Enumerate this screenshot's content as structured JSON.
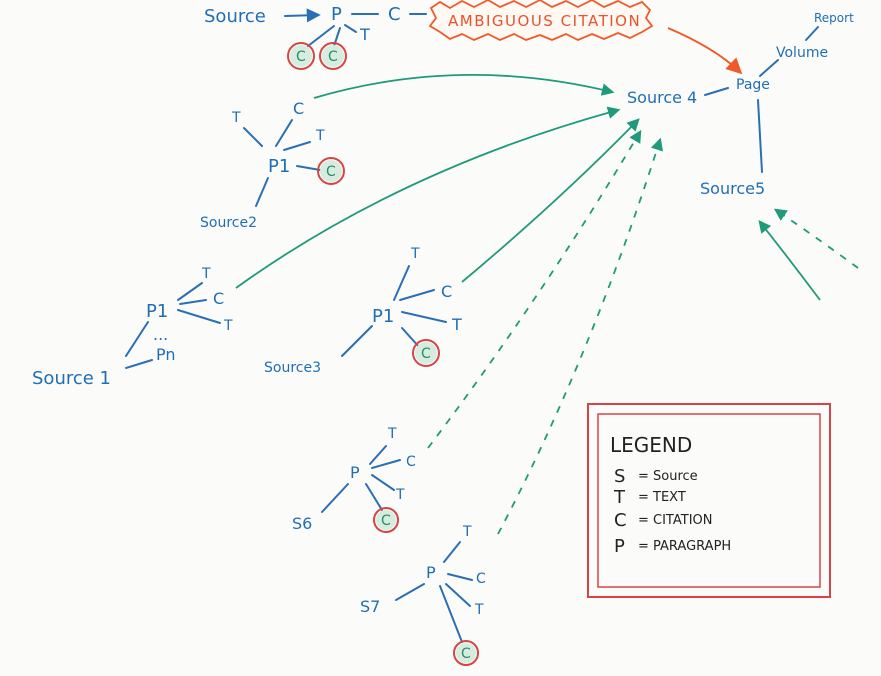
{
  "colors": {
    "node": "#2a6fb3",
    "arrow": "#1f9a7a",
    "ambiguous": "#ee5a2a",
    "legend_border": "#d64545"
  },
  "top": {
    "source": "Source",
    "p": "P",
    "c": "C",
    "t": "T",
    "cit1": "C",
    "cit2": "C",
    "ambiguous": "AMBIGUOUS CITATION"
  },
  "right": {
    "source4": "Source 4",
    "page": "Page",
    "volume": "Volume",
    "report": "Report",
    "source5": "Source5"
  },
  "s2": {
    "t": "T",
    "c": "C",
    "t2": "T",
    "p1": "P1",
    "cit": "C",
    "source": "Source2"
  },
  "s1": {
    "t": "T",
    "c": "C",
    "t2": "T",
    "p1": "P1",
    "dots": "...",
    "pn": "Pn",
    "source": "Source 1"
  },
  "s3": {
    "t": "T",
    "c": "C",
    "t2": "T",
    "p1": "P1",
    "cit": "C",
    "source": "Source3"
  },
  "s6": {
    "t": "T",
    "c": "C",
    "t2": "T",
    "p": "P",
    "cit": "C",
    "source": "S6"
  },
  "s7": {
    "t": "T",
    "c": "C",
    "t2": "T",
    "p": "P",
    "cit": "C",
    "source": "S7"
  },
  "legend": {
    "title": "LEGEND",
    "rows": [
      {
        "key": "S",
        "value": "= Source"
      },
      {
        "key": "T",
        "value": "= TEXT"
      },
      {
        "key": "C",
        "value": "= CITATION"
      },
      {
        "key": "P",
        "value": "= PARAGRAPH"
      }
    ]
  }
}
